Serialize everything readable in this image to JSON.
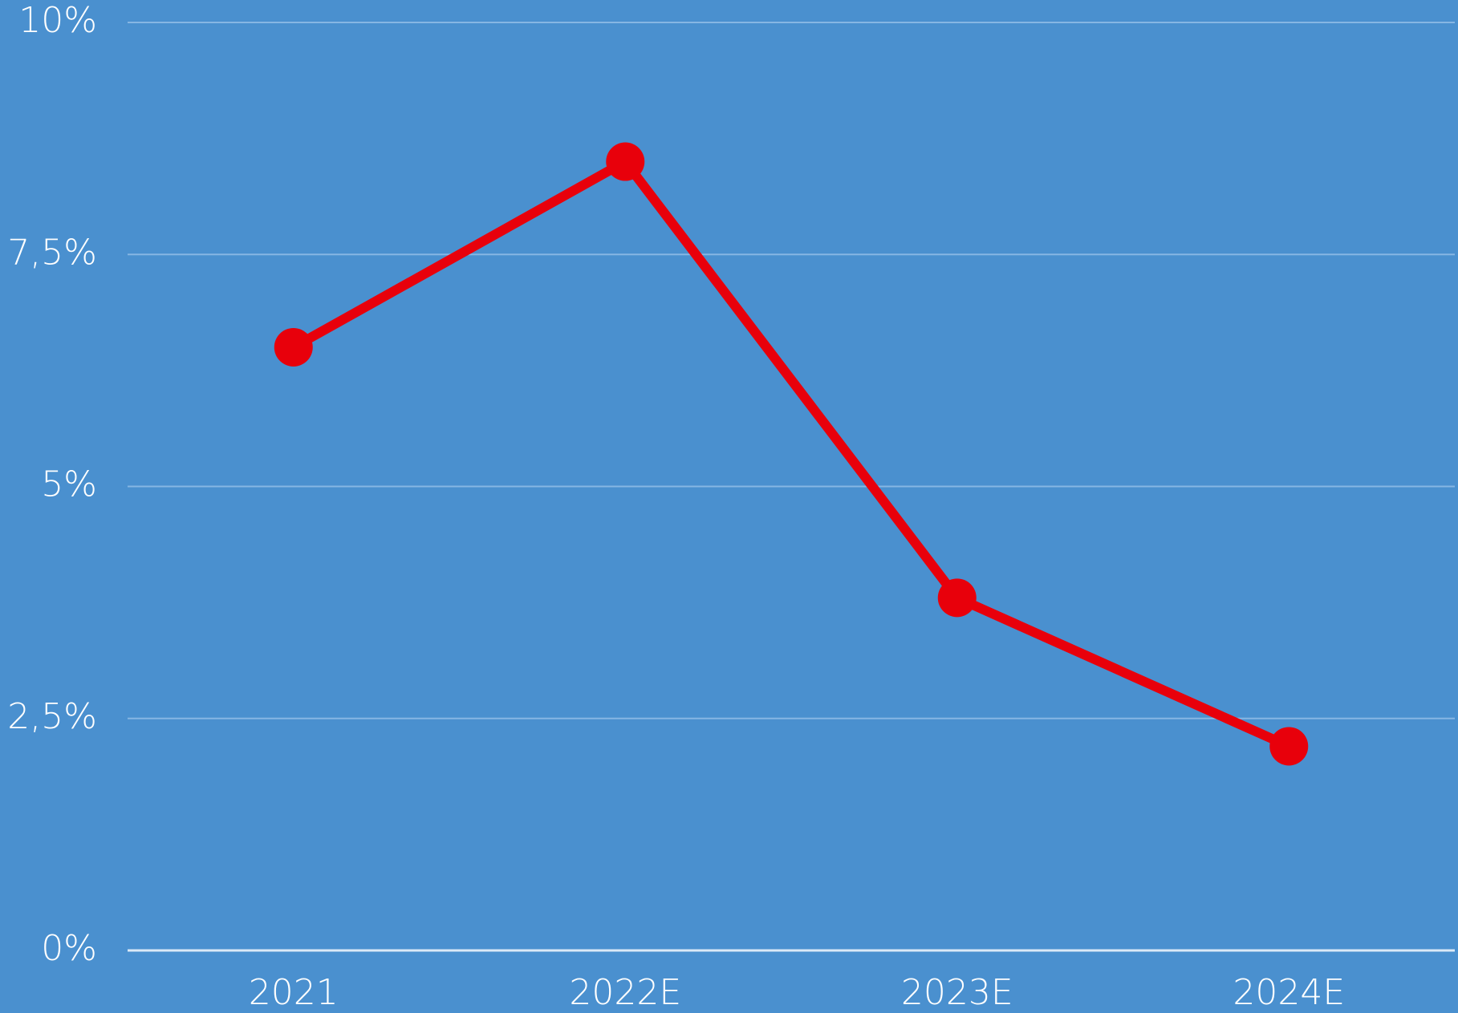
{
  "chart_data": {
    "type": "line",
    "categories": [
      "2021",
      "2022E",
      "2023E",
      "2024E"
    ],
    "values": [
      6.5,
      8.5,
      3.8,
      2.2
    ],
    "color": "#e8000b",
    "ylim": [
      0,
      10
    ],
    "yticks": [
      {
        "value": 0,
        "label": "0%"
      },
      {
        "value": 2.5,
        "label": "2,5%"
      },
      {
        "value": 5,
        "label": "5%"
      },
      {
        "value": 7.5,
        "label": "7,5%"
      },
      {
        "value": 10,
        "label": "10%"
      }
    ],
    "grid": true
  }
}
